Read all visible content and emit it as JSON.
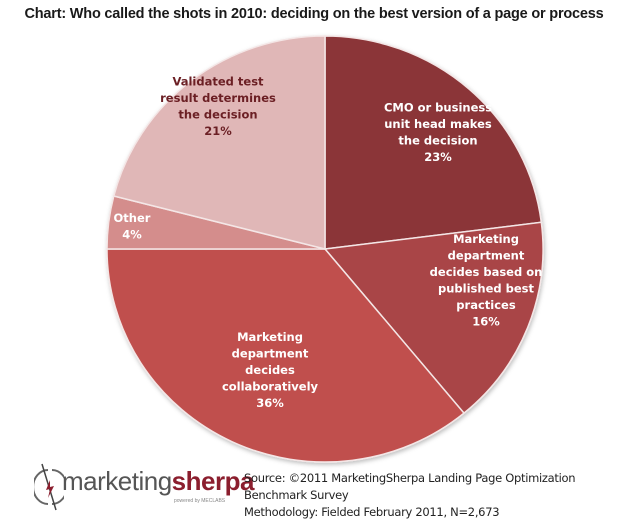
{
  "title": "Chart: Who called the shots in 2010: deciding on the best version of a page or process",
  "chart_data": {
    "type": "pie",
    "title": "Chart: Who called the shots in 2010: deciding on the best version of a page or process",
    "start_angle": "12 o'clock, clockwise",
    "categories": [
      "CMO or business unit head makes the decision",
      "Marketing department decides based on published best practices",
      "Marketing department decides collaboratively",
      "Other",
      "Validated test result determines the decision"
    ],
    "values": [
      23,
      16,
      36,
      4,
      21
    ],
    "unit": "%",
    "colors": [
      "#8b3537",
      "#a94446",
      "#c0504d",
      "#d48d8c",
      "#e0b7b7"
    ],
    "legend": "none (data labels inside slices)"
  },
  "labels": [
    {
      "lines": [
        "CMO or business",
        "unit head makes",
        "the decision",
        "23%"
      ],
      "color": "#ffffff"
    },
    {
      "lines": [
        "Marketing",
        "department",
        "decides based on",
        "published best",
        "practices",
        "16%"
      ],
      "color": "#ffffff"
    },
    {
      "lines": [
        "Marketing",
        "department",
        "decides",
        "collaboratively",
        "36%"
      ],
      "color": "#ffffff"
    },
    {
      "lines": [
        "Other",
        "4%"
      ],
      "color": "#ffffff"
    },
    {
      "lines": [
        "Validated test",
        "result determines",
        "the decision",
        "21%"
      ],
      "color": "#6b1f24"
    }
  ],
  "footer": {
    "logo_left": "marketing",
    "logo_right": "sherpa",
    "logo_tagline": "powered by MECLABS",
    "source": "Source: ©2011 MarketingSherpa Landing Page Optimization Benchmark Survey",
    "methodology": "Methodology: Fielded February 2011, N=2,673"
  }
}
